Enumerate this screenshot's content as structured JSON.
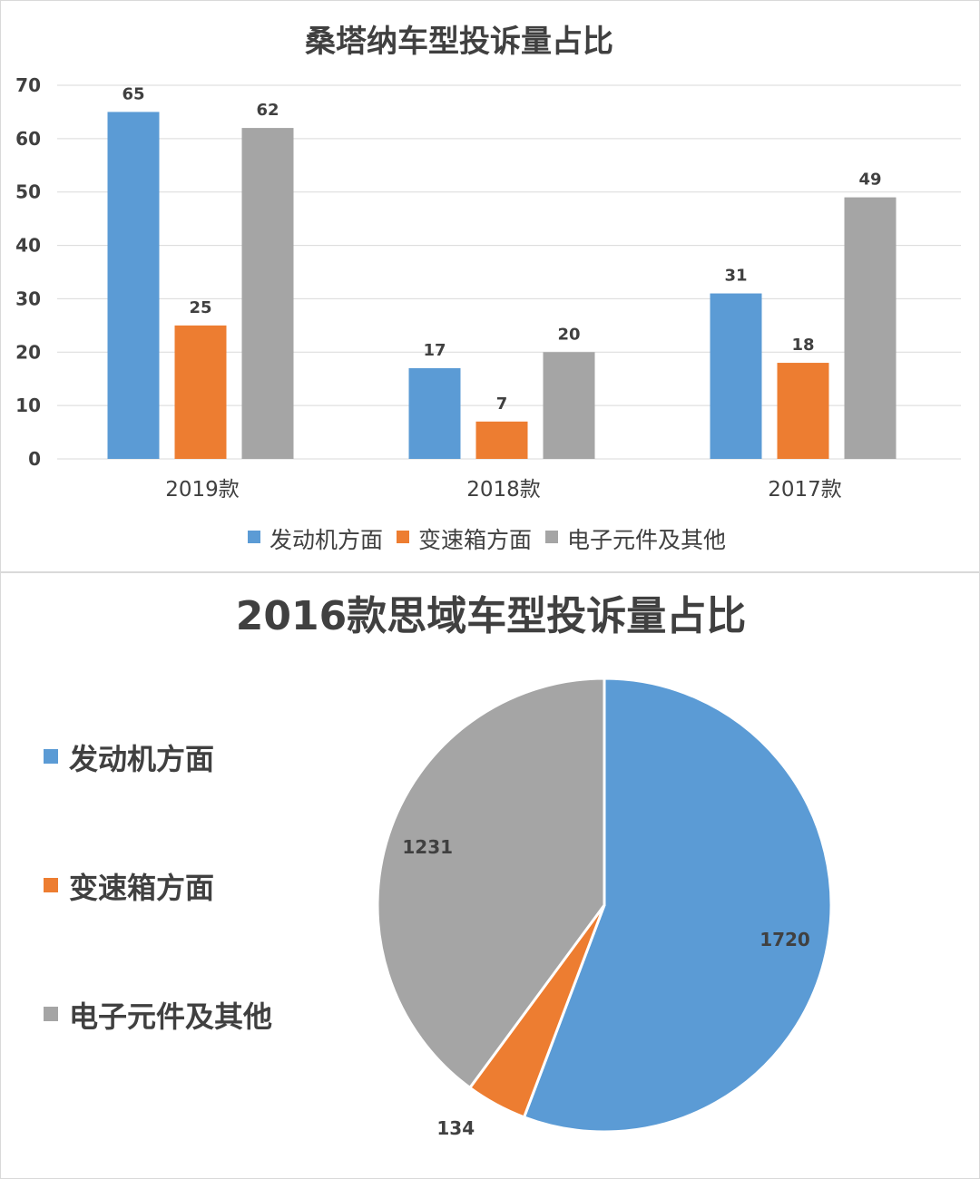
{
  "chart_data": [
    {
      "type": "bar",
      "title": "桑塔纳车型投诉量占比",
      "categories": [
        "2019款",
        "2018款",
        "2017款"
      ],
      "series": [
        {
          "name": "发动机方面",
          "color": "#5b9bd5",
          "values": [
            65,
            17,
            31
          ]
        },
        {
          "name": "变速箱方面",
          "color": "#ed7d31",
          "values": [
            25,
            7,
            18
          ]
        },
        {
          "name": "电子元件及其他",
          "color": "#a5a5a5",
          "values": [
            62,
            20,
            49
          ]
        }
      ],
      "yticks": [
        "0",
        "10",
        "20",
        "30",
        "40",
        "50",
        "60",
        "70"
      ],
      "ylim": [
        0,
        70
      ],
      "grid": true,
      "legend": "bottom"
    },
    {
      "type": "pie",
      "title": "2016款思域车型投诉量占比",
      "slices": [
        {
          "name": "发动机方面",
          "value": 1720,
          "color": "#5b9bd5"
        },
        {
          "name": "变速箱方面",
          "value": 134,
          "color": "#ed7d31"
        },
        {
          "name": "电子元件及其他",
          "value": 1231,
          "color": "#a5a5a5"
        }
      ],
      "legend": "left"
    }
  ]
}
